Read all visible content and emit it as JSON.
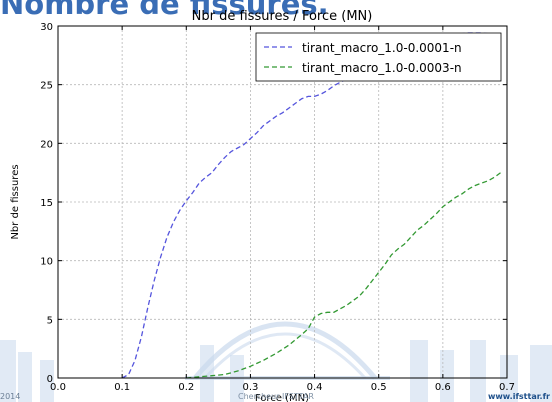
{
  "slide": {
    "heading": "Nombre de fissures.",
    "footer_left": "2014",
    "footer_center": "Chercheur IFSTTAR",
    "footer_right": "www.ifsttar.fr"
  },
  "colors": {
    "series1": "#5555dd",
    "series2": "#339933",
    "grid": "#b8b8b8",
    "axis": "#000000",
    "backdrop": "#c9d9ec"
  },
  "chart_data": {
    "type": "line",
    "title": "Nbr de fissures / Force (MN)",
    "xlabel": "Force (MN)",
    "ylabel": "Nbr de fissures",
    "xlim": [
      0.0,
      0.7
    ],
    "ylim": [
      0,
      30
    ],
    "xticks": [
      0.0,
      0.1,
      0.2,
      0.3,
      0.4,
      0.5,
      0.6,
      0.7
    ],
    "xtick_labels": [
      "0.0",
      "0.1",
      "0.2",
      "0.3",
      "0.4",
      "0.5",
      "0.6",
      "0.7"
    ],
    "yticks": [
      0,
      5,
      10,
      15,
      20,
      25,
      30
    ],
    "ytick_labels": [
      "0",
      "5",
      "10",
      "15",
      "20",
      "25",
      "30"
    ],
    "grid": true,
    "legend_position": "top-right",
    "series": [
      {
        "name": "tirant_macro_1.0-0.0001-n",
        "style": "dashed",
        "x": [
          0.1,
          0.11,
          0.12,
          0.13,
          0.14,
          0.15,
          0.16,
          0.17,
          0.18,
          0.19,
          0.2,
          0.21,
          0.22,
          0.23,
          0.24,
          0.25,
          0.26,
          0.27,
          0.28,
          0.29,
          0.3,
          0.31,
          0.32,
          0.33,
          0.34,
          0.35,
          0.36,
          0.37,
          0.38,
          0.39,
          0.4,
          0.41,
          0.42,
          0.43,
          0.44,
          0.45,
          0.46,
          0.47,
          0.48,
          0.49,
          0.5,
          0.52,
          0.54,
          0.56,
          0.58,
          0.6,
          0.62,
          0.64,
          0.66,
          0.68,
          0.69
        ],
        "y": [
          0.0,
          0.3,
          1.5,
          3.5,
          6.0,
          8.3,
          10.3,
          12.0,
          13.3,
          14.3,
          15.1,
          15.8,
          16.6,
          17.1,
          17.5,
          18.2,
          18.8,
          19.3,
          19.6,
          19.9,
          20.4,
          20.9,
          21.5,
          21.9,
          22.3,
          22.6,
          23.0,
          23.4,
          23.8,
          24.0,
          24.0,
          24.2,
          24.5,
          24.9,
          25.2,
          25.5,
          25.8,
          26.1,
          26.4,
          26.7,
          27.0,
          27.6,
          28.1,
          28.5,
          28.9,
          29.1,
          29.3,
          29.4,
          29.4,
          29.3,
          29.2
        ]
      },
      {
        "name": "tirant_macro_1.0-0.0003-n",
        "style": "dashed",
        "x": [
          0.2,
          0.22,
          0.24,
          0.26,
          0.28,
          0.3,
          0.32,
          0.34,
          0.36,
          0.38,
          0.39,
          0.4,
          0.41,
          0.42,
          0.43,
          0.44,
          0.45,
          0.46,
          0.47,
          0.48,
          0.49,
          0.5,
          0.51,
          0.52,
          0.53,
          0.54,
          0.55,
          0.56,
          0.57,
          0.58,
          0.59,
          0.6,
          0.61,
          0.62,
          0.63,
          0.64,
          0.65,
          0.66,
          0.67,
          0.68,
          0.69
        ],
        "y": [
          0.0,
          0.1,
          0.2,
          0.3,
          0.6,
          1.0,
          1.5,
          2.1,
          2.8,
          3.7,
          4.2,
          5.2,
          5.5,
          5.6,
          5.6,
          5.9,
          6.2,
          6.6,
          7.0,
          7.6,
          8.3,
          9.0,
          9.7,
          10.5,
          11.0,
          11.4,
          12.0,
          12.6,
          13.0,
          13.5,
          14.0,
          14.6,
          15.0,
          15.4,
          15.7,
          16.1,
          16.4,
          16.6,
          16.8,
          17.1,
          17.5
        ]
      }
    ]
  }
}
